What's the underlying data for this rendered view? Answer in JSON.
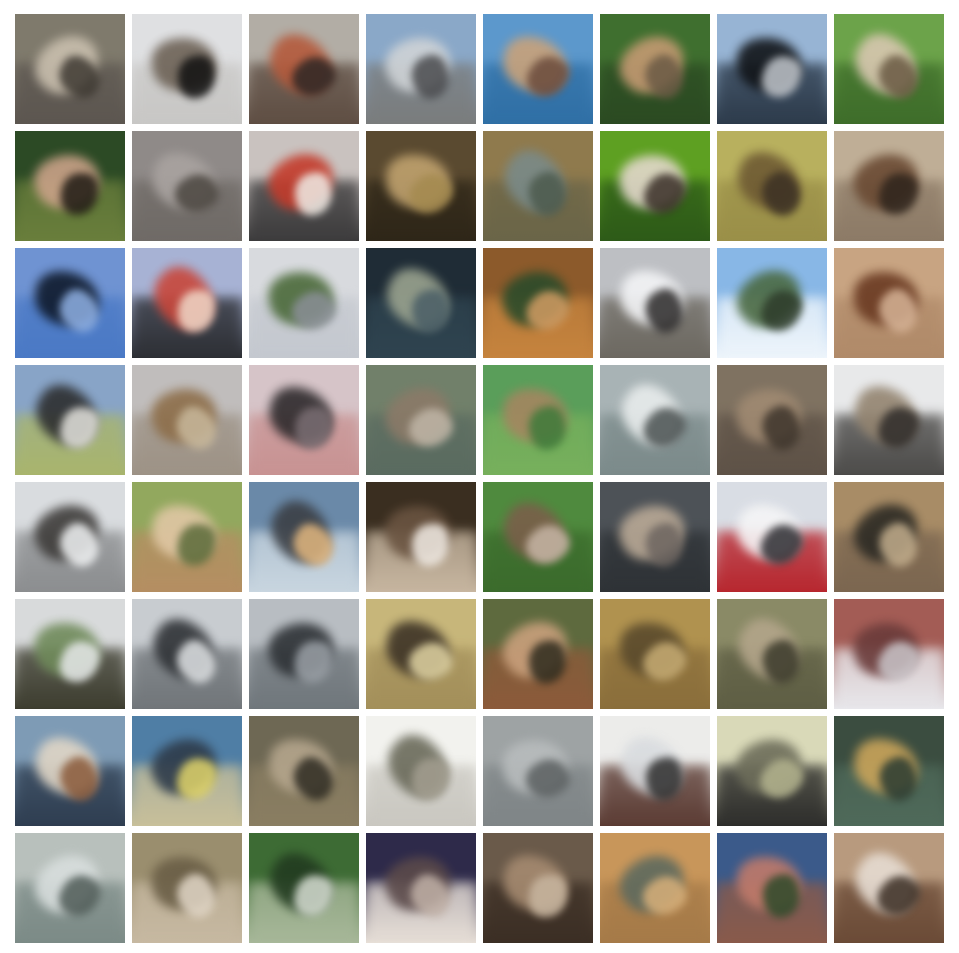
{
  "tiles": [
    [
      "#7f7a6c",
      "#5c5650",
      "#c9bfae",
      "#3f3a33"
    ],
    [
      "#dfe0e2",
      "#c8c7c5",
      "#6d6256",
      "#111111"
    ],
    [
      "#b2ada5",
      "#5e4d42",
      "#b45a3c",
      "#2e2725"
    ],
    [
      "#8aa8c8",
      "#7a7c7c",
      "#cfd3d6",
      "#4a4b4e"
    ],
    [
      "#5c98cc",
      "#2f6fa5",
      "#c9a27a",
      "#6b4b3c"
    ],
    [
      "#3f6f2f",
      "#2b4a22",
      "#c49a72",
      "#6b5a45"
    ],
    [
      "#97b4d4",
      "#2c3a4a",
      "#111418",
      "#c1c6cc"
    ],
    [
      "#6ca34a",
      "#3e6d2a",
      "#d8c7b0",
      "#6a5a43"
    ],
    [
      "#2c4a25",
      "#6a7f3c",
      "#caa288",
      "#1f1a14"
    ],
    [
      "#8f8a88",
      "#6f6a66",
      "#a9a3a0",
      "#4b4640"
    ],
    [
      "#c9c2bf",
      "#3b3a3b",
      "#c33b2b",
      "#f0ece6"
    ],
    [
      "#5a4a30",
      "#2e2618",
      "#c0a26e",
      "#a48a4f"
    ],
    [
      "#8f7a4d",
      "#6a6548",
      "#7a8a88",
      "#4c5a4d"
    ],
    [
      "#5ea022",
      "#2d5a18",
      "#e3d8cb",
      "#3a2f28"
    ],
    [
      "#b8b05e",
      "#9a8f48",
      "#6e5a33",
      "#3b3024"
    ],
    [
      "#bfae96",
      "#8c7a66",
      "#6a4a33",
      "#2e241c"
    ],
    [
      "#6f93d2",
      "#4a79c5",
      "#0f1a2c",
      "#8fb0e3"
    ],
    [
      "#a7b2d4",
      "#2c2e33",
      "#c8473b",
      "#f0d8c8"
    ],
    [
      "#d8dade",
      "#c4c8cf",
      "#4b6a3a",
      "#8a8f96"
    ],
    [
      "#1f2c36",
      "#2f4450",
      "#9aa38f",
      "#4a5e66"
    ],
    [
      "#8c5a2b",
      "#c6843e",
      "#2b4b2a",
      "#d19c63"
    ],
    [
      "#bdbfc3",
      "#6c6860",
      "#f3f4f6",
      "#2c2a2a"
    ],
    [
      "#88b7e6",
      "#eef5fb",
      "#4b6a43",
      "#2d3b2a"
    ],
    [
      "#c8a482",
      "#b08a69",
      "#6a3a22",
      "#d6b396"
    ],
    [
      "#88a4c7",
      "#a9b56c",
      "#2d2e2f",
      "#e3e2dd"
    ],
    [
      "#c0bdbc",
      "#9d9285",
      "#8d6e4a",
      "#c8b89b"
    ],
    [
      "#d6c4c8",
      "#c89292",
      "#2e2a2c",
      "#7a6e73"
    ],
    [
      "#71806a",
      "#5a6b60",
      "#8b7a68",
      "#c0b6a7"
    ],
    [
      "#5a9e5a",
      "#77b05c",
      "#a48660",
      "#3e7a3a"
    ],
    [
      "#a8b3b5",
      "#7b8a8a",
      "#e8ecec",
      "#4b5252"
    ],
    [
      "#7f7261",
      "#5e5247",
      "#a08a72",
      "#3e352c"
    ],
    [
      "#e8e9ea",
      "#4b4a48",
      "#938470",
      "#2f2c2a"
    ],
    [
      "#d9dcdf",
      "#8b8d8f",
      "#3e3c3a",
      "#f0f2f3"
    ],
    [
      "#92a85e",
      "#b58e62",
      "#e0c7a4",
      "#5b6b3a"
    ],
    [
      "#6a89a8",
      "#c9d6e0",
      "#3b3f45",
      "#e1b67e"
    ],
    [
      "#3a2e20",
      "#c8b7a1",
      "#6a5441",
      "#f1ebe4"
    ],
    [
      "#4f8a3e",
      "#3b6b2c",
      "#7a5f4a",
      "#c7b6a6"
    ],
    [
      "#4d5257",
      "#2e3236",
      "#b9a996",
      "#6d6560"
    ],
    [
      "#d9dde4",
      "#b7252d",
      "#f5f5f6",
      "#2e2e33"
    ],
    [
      "#a88c66",
      "#7b6650",
      "#2c2a24",
      "#c2ad8c"
    ],
    [
      "#d8dadb",
      "#3c3c2e",
      "#6f8a5a",
      "#e7e9ea"
    ],
    [
      "#c8ccd0",
      "#707579",
      "#2f3236",
      "#e0e3e5"
    ],
    [
      "#b8bdc2",
      "#6f767b",
      "#2e3236",
      "#9aa0a6"
    ],
    [
      "#c7b67a",
      "#a38f5a",
      "#3d3326",
      "#e0d3a2"
    ],
    [
      "#5e6a3e",
      "#8c5a3a",
      "#c9a07c",
      "#2e2b1e"
    ],
    [
      "#b0924f",
      "#8a6e3b",
      "#5a4a2c",
      "#c8ad74"
    ],
    [
      "#8a8a66",
      "#5e5e44",
      "#b3a58a",
      "#3b3a2b"
    ],
    [
      "#a35c55",
      "#e8e8ec",
      "#6a3b3a",
      "#c9c4c8"
    ],
    [
      "#7e9bb5",
      "#2e3d50",
      "#e0d6c6",
      "#8a5a3a"
    ],
    [
      "#4f7ea5",
      "#c9c09a",
      "#2e3b4a",
      "#e0d46a"
    ],
    [
      "#6e6854",
      "#8a7e62",
      "#b4a58c",
      "#2e2b22"
    ],
    [
      "#f2f2ee",
      "#c9c7c0",
      "#6a6a5a",
      "#a39e90"
    ],
    [
      "#9ea3a4",
      "#7f8587",
      "#b8bcbd",
      "#5b6061"
    ],
    [
      "#ececea",
      "#5a3a32",
      "#d9dcdf",
      "#2e2e2e"
    ],
    [
      "#d9d9b8",
      "#2c2c2a",
      "#6d6d5a",
      "#b3b38e"
    ],
    [
      "#3b4d40",
      "#4f6a5a",
      "#c9a45a",
      "#2a3b32"
    ],
    [
      "#b8c0bc",
      "#7b8a86",
      "#d8dedd",
      "#4f5b57"
    ],
    [
      "#9a8e6e",
      "#c7b9a2",
      "#6a5e46",
      "#e1d6c6"
    ],
    [
      "#3d6b34",
      "#a8b89a",
      "#223b20",
      "#d6ddd2"
    ],
    [
      "#2e2a4a",
      "#e8e0d8",
      "#5b4a4a",
      "#c0b0a6"
    ],
    [
      "#6a5a4a",
      "#3b2e24",
      "#a58a70",
      "#c8b6a0"
    ],
    [
      "#c8965a",
      "#a57a48",
      "#5e6a5e",
      "#d8b07a"
    ],
    [
      "#3b5a8a",
      "#8a5a4a",
      "#c07a6a",
      "#2e4a2a"
    ],
    [
      "#b89a7e",
      "#6a4a36",
      "#e6dcd2",
      "#3b2e24"
    ]
  ]
}
